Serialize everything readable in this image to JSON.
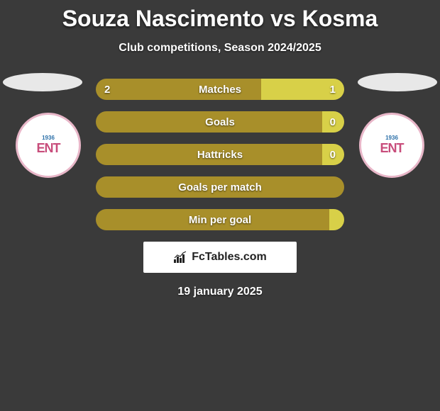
{
  "title": "Souza Nascimento vs Kosma",
  "subtitle": "Club competitions, Season 2024/2025",
  "date": "19 january 2025",
  "logo_text": "FcTables.com",
  "colors": {
    "left_bar": "#a88f2a",
    "right_bar": "#d8d048",
    "background": "#3a3a3a",
    "badge_border": "#e8b6c8",
    "badge_text": "#c84d7b"
  },
  "badges": {
    "left": {
      "year": "1936",
      "text": "ENT"
    },
    "right": {
      "year": "1936",
      "text": "ENT"
    }
  },
  "stats": [
    {
      "label": "Matches",
      "left_val": "2",
      "right_val": "1",
      "left_pct": 66.7,
      "right_pct": 33.3,
      "show_vals": true
    },
    {
      "label": "Goals",
      "left_val": "",
      "right_val": "0",
      "left_pct": 91,
      "right_pct": 9,
      "show_vals": true
    },
    {
      "label": "Hattricks",
      "left_val": "",
      "right_val": "0",
      "left_pct": 91,
      "right_pct": 9,
      "show_vals": true
    },
    {
      "label": "Goals per match",
      "left_val": "",
      "right_val": "",
      "left_pct": 100,
      "right_pct": 0,
      "show_vals": false
    },
    {
      "label": "Min per goal",
      "left_val": "",
      "right_val": "",
      "left_pct": 94,
      "right_pct": 6,
      "show_vals": false
    }
  ]
}
